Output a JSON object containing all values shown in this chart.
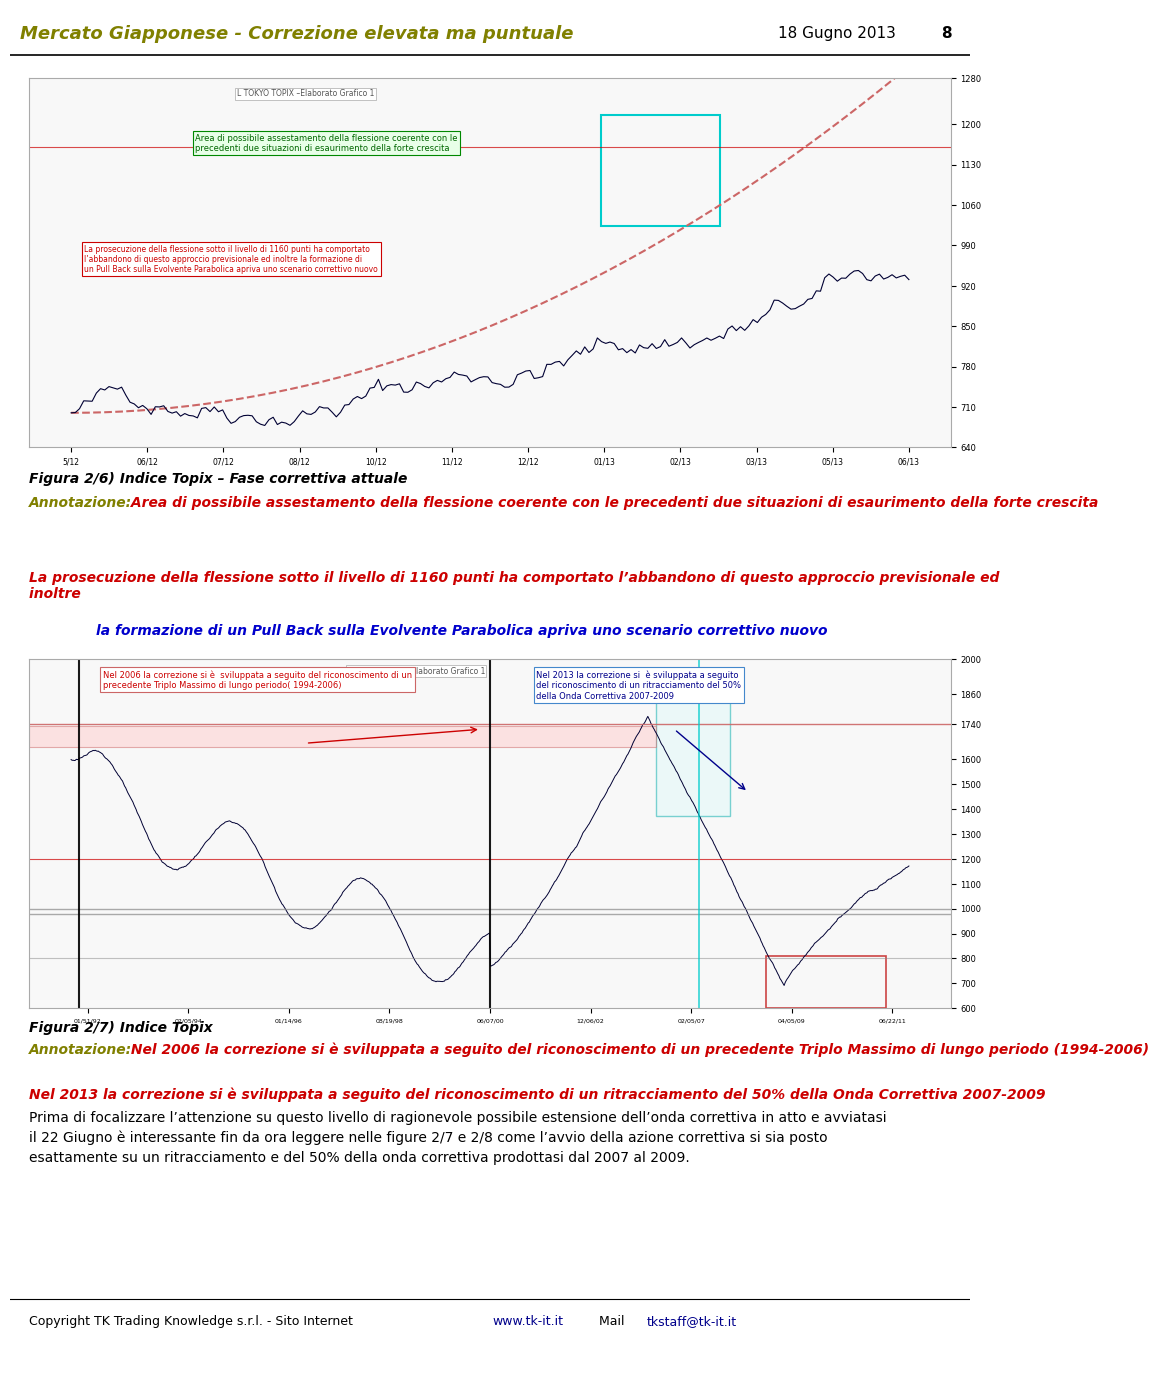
{
  "title": "Mercato Giapponese - Correzione elevata ma puntuale",
  "date": "18 Gugno 2013",
  "page": "8",
  "title_color": "#808000",
  "date_color": "#000000",
  "bg_color": "#ffffff",
  "fig26_title": "Figura 2/6) Indice Topix – Fase correttiva attuale",
  "fig26_title_color": "#000000",
  "annot_label": "Annotazione:",
  "annot_label_color": "#808000",
  "annot26_text": " Area di possibile assestamento della flessione coerente con le precedenti due situazioni di esaurimento della forte crescita",
  "annot26_color": "#cc0000",
  "body26_text": "La prosecuzione della flessione sotto il livello di 1160 punti ha comportato l’abbandono di questo approccio previsionale ed\ninoltre ",
  "body26_color": "#cc0000",
  "body26_blue_text": "la formazione di un Pull Back sulla Evolvente Parabolica apriva uno scenario correttivo nuovo",
  "body26_blue_color": "#0000cc",
  "fig27_title": "Figura 2/7) Indice Topix",
  "fig27_title_color": "#000000",
  "annot27_label": "Annotazione:",
  "annot27_label_color": "#808000",
  "annot27_text_red": " Nel 2006 la correzione si è sviluppata a seguito del riconoscimento di un precedente Triplo Massimo di lungo periodo (1994-2006)",
  "annot27_text_red_color": "#cc0000",
  "annot27_line2": "Nel 2013 la correzione si è sviluppata a seguito del riconoscimento di un ritracciamento del 50% della Onda Correttiva 2007-2009",
  "annot27_line2_color": "#cc0000",
  "body27_text": "Prima di focalizzare l’attenzione su questo livello di ragionevole possibile estensione dell’onda correttiva in atto e avviatasi\nil 22 Giugno è interessante fin da ora leggere nelle figure 2/7 e 2/8 come l’avvio della azione correttiva si sia posto\nesattamente su un ritracciamento e del 50% della onda correttiva prodottasi dal 2007 al 2009.",
  "body27_color": "#000000",
  "copyright_text": "Copyright TK Trading Knowledge s.r.l. - Sito Internet ",
  "copyright_url1": "www.tk-it.it",
  "copyright_mid": " Mail ",
  "copyright_url2": "tkstaff@tk-it.it",
  "copyright_color": "#000000",
  "copyright_url_color": "#00008b",
  "separator_color": "#000000",
  "chart1_label": "L TOKYO TOPIX –Elaborato Grafico 1",
  "chart1_annotation_text": "Area di possibile assestamento della flessione coerente con le\nprecedenti due situazioni di esaurimento della forte crescita",
  "chart1_body_text": "La prosecuzione della flessione sotto il livello di 1160 punti ha comportato\nl’abbandono di questo approccio previsionale ed inoltre la formazione di\nun Pull Back sulla Evolvente Parabolica apriva uno scenario correttivo nuovo",
  "chart2_label": "L TOKYO TOPIX –Elaborato Grafico 1",
  "chart2_box1_text": "Nel 2006 la correzione si è  sviluppata a seguito del riconoscimento di un\nprecedente Triplo Massimo di lungo periodo( 1994-2006)",
  "chart2_box2_text": "Nel 2013 la correzione si  è sviluppata a seguito\ndel riconoscimento di un ritracciamento del 50%\ndella Onda Correttiva 2007-2009"
}
